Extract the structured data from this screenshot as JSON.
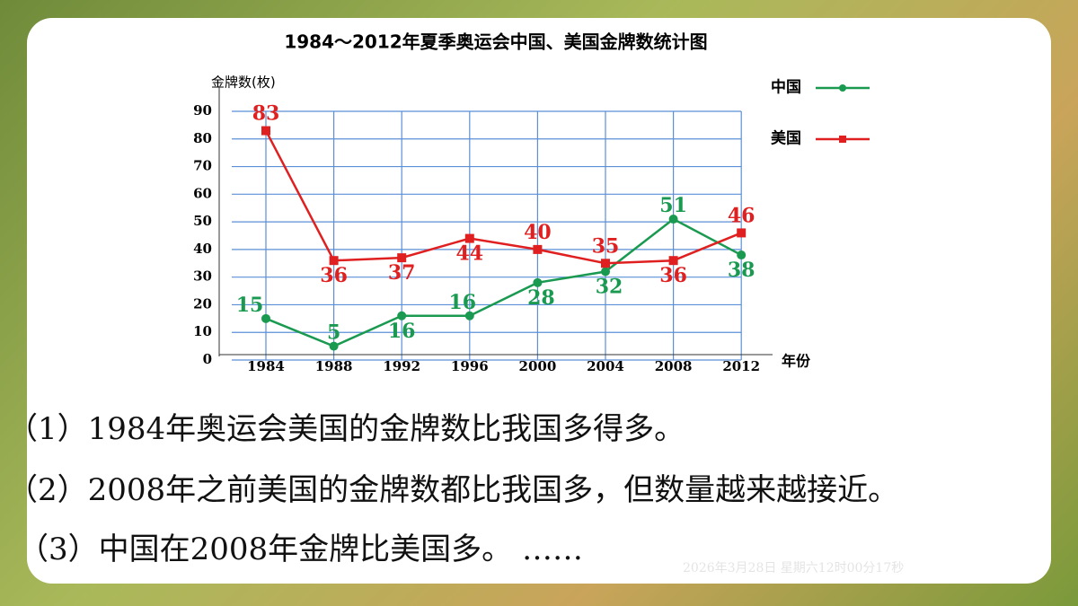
{
  "chart_data": {
    "type": "line",
    "title": "1984～2012年夏季奥运会中国、美国金牌数统计图",
    "y_label": "金牌数(枚)",
    "x_label": "年份",
    "categories": [
      "1984",
      "1988",
      "1992",
      "1996",
      "2000",
      "2004",
      "2008",
      "2012"
    ],
    "series": [
      {
        "name": "中国",
        "color": "#1a9a50",
        "values": [
          15,
          5,
          16,
          16,
          28,
          32,
          51,
          38
        ]
      },
      {
        "name": "美国",
        "color": "#e02020",
        "values": [
          83,
          36,
          37,
          44,
          40,
          35,
          36,
          46
        ]
      }
    ],
    "ylim": [
      0,
      90
    ],
    "yticks": [
      0,
      10,
      20,
      30,
      40,
      50,
      60,
      70,
      80,
      90
    ],
    "grid": true,
    "legend": "top-right"
  },
  "statements": [
    "（1）1984年奥运会美国的金牌数比我国多得多。",
    "（2）2008年之前美国的金牌数都比我国多，但数量越来越接近。",
    "（3）中国在2008年金牌比美国多。 ……"
  ],
  "timestamp": "2026年3月28日 星期六12时00分17秒"
}
